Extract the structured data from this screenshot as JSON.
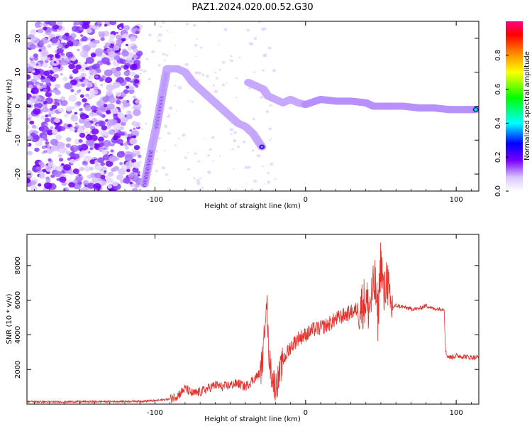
{
  "title": "PAZ1.2024.020.00.52.G30",
  "chart_data": [
    {
      "type": "heatmap",
      "title": "",
      "xlabel": "Height of straight line (km)",
      "ylabel": "Frequency (Hz)",
      "xlim": [
        -185,
        115
      ],
      "ylim": [
        -25,
        25
      ],
      "xticks": [
        -100,
        0,
        100
      ],
      "yticks": [
        -20,
        -10,
        0,
        10,
        20
      ],
      "colorbar": {
        "label": "Normalized spectral amplitude",
        "range": [
          0,
          1
        ],
        "ticks": [
          0.0,
          0.2,
          0.4,
          0.6,
          0.8
        ]
      },
      "ridge": [
        {
          "x": -107,
          "y": -23
        },
        {
          "x": -102,
          "y": -12
        },
        {
          "x": -99,
          "y": -6
        },
        {
          "x": -95,
          "y": 4
        },
        {
          "x": -92,
          "y": 11
        },
        {
          "x": -85,
          "y": 11
        },
        {
          "x": -80,
          "y": 10
        },
        {
          "x": -75,
          "y": 7
        },
        {
          "x": -70,
          "y": 5
        },
        {
          "x": -65,
          "y": 3
        },
        {
          "x": -60,
          "y": 1
        },
        {
          "x": -55,
          "y": -1
        },
        {
          "x": -50,
          "y": -3
        },
        {
          "x": -45,
          "y": -5
        },
        {
          "x": -40,
          "y": -6
        },
        {
          "x": -35,
          "y": -8
        },
        {
          "x": -29,
          "y": -12
        },
        {
          "x": -38,
          "y": 7
        },
        {
          "x": -33,
          "y": 6
        },
        {
          "x": -28,
          "y": 5
        },
        {
          "x": -25,
          "y": 3
        },
        {
          "x": -20,
          "y": 2
        },
        {
          "x": -15,
          "y": 1
        },
        {
          "x": -10,
          "y": 2
        },
        {
          "x": -5,
          "y": 1
        },
        {
          "x": 0,
          "y": 0.5
        },
        {
          "x": 10,
          "y": 2
        },
        {
          "x": 20,
          "y": 1.5
        },
        {
          "x": 30,
          "y": 1.5
        },
        {
          "x": 40,
          "y": 1
        },
        {
          "x": 45,
          "y": 0
        },
        {
          "x": 55,
          "y": 0
        },
        {
          "x": 65,
          "y": 0
        },
        {
          "x": 75,
          "y": -0.5
        },
        {
          "x": 85,
          "y": -0.5
        },
        {
          "x": 95,
          "y": -1
        },
        {
          "x": 105,
          "y": -1
        },
        {
          "x": 113,
          "y": -1
        }
      ]
    },
    {
      "type": "line",
      "title": "",
      "xlabel": "Height of straight line (km)",
      "ylabel": "SNR (10 * v/v)",
      "xlim": [
        -185,
        115
      ],
      "ylim": [
        0,
        9800
      ],
      "xticks": [
        -100,
        0,
        100
      ],
      "yticks": [
        2000,
        4000,
        6000,
        8000
      ],
      "color": "#e8302a",
      "series": [
        {
          "x": [
            -185,
            -170,
            -150,
            -130,
            -110,
            -100,
            -90,
            -85,
            -80,
            -75,
            -70,
            -65,
            -60,
            -55,
            -50,
            -45,
            -40,
            -35,
            -30,
            -28,
            -26,
            -25,
            -24,
            -22,
            -20,
            -18,
            -15,
            -12,
            -10,
            -5,
            0,
            5,
            10,
            15,
            20,
            25,
            30,
            35,
            38,
            40,
            42,
            44,
            46,
            48,
            50,
            52,
            54,
            56,
            60,
            65,
            70,
            75,
            80,
            85,
            90,
            92,
            93,
            94,
            96,
            100,
            105,
            110,
            115
          ],
          "y": [
            150,
            130,
            140,
            150,
            170,
            200,
            300,
            500,
            900,
            600,
            700,
            900,
            1100,
            1000,
            1100,
            1200,
            1000,
            1400,
            1800,
            3000,
            6500,
            4000,
            2500,
            1500,
            1000,
            1500,
            2500,
            3000,
            3300,
            3800,
            4000,
            4300,
            4400,
            4600,
            4900,
            5100,
            5300,
            5500,
            5800,
            6000,
            5500,
            6200,
            7000,
            5000,
            8500,
            6000,
            7500,
            5500,
            5700,
            5600,
            5500,
            5500,
            5700,
            5500,
            5500,
            5500,
            3000,
            2800,
            2700,
            2800,
            2750,
            2700,
            2700
          ]
        }
      ]
    }
  ]
}
